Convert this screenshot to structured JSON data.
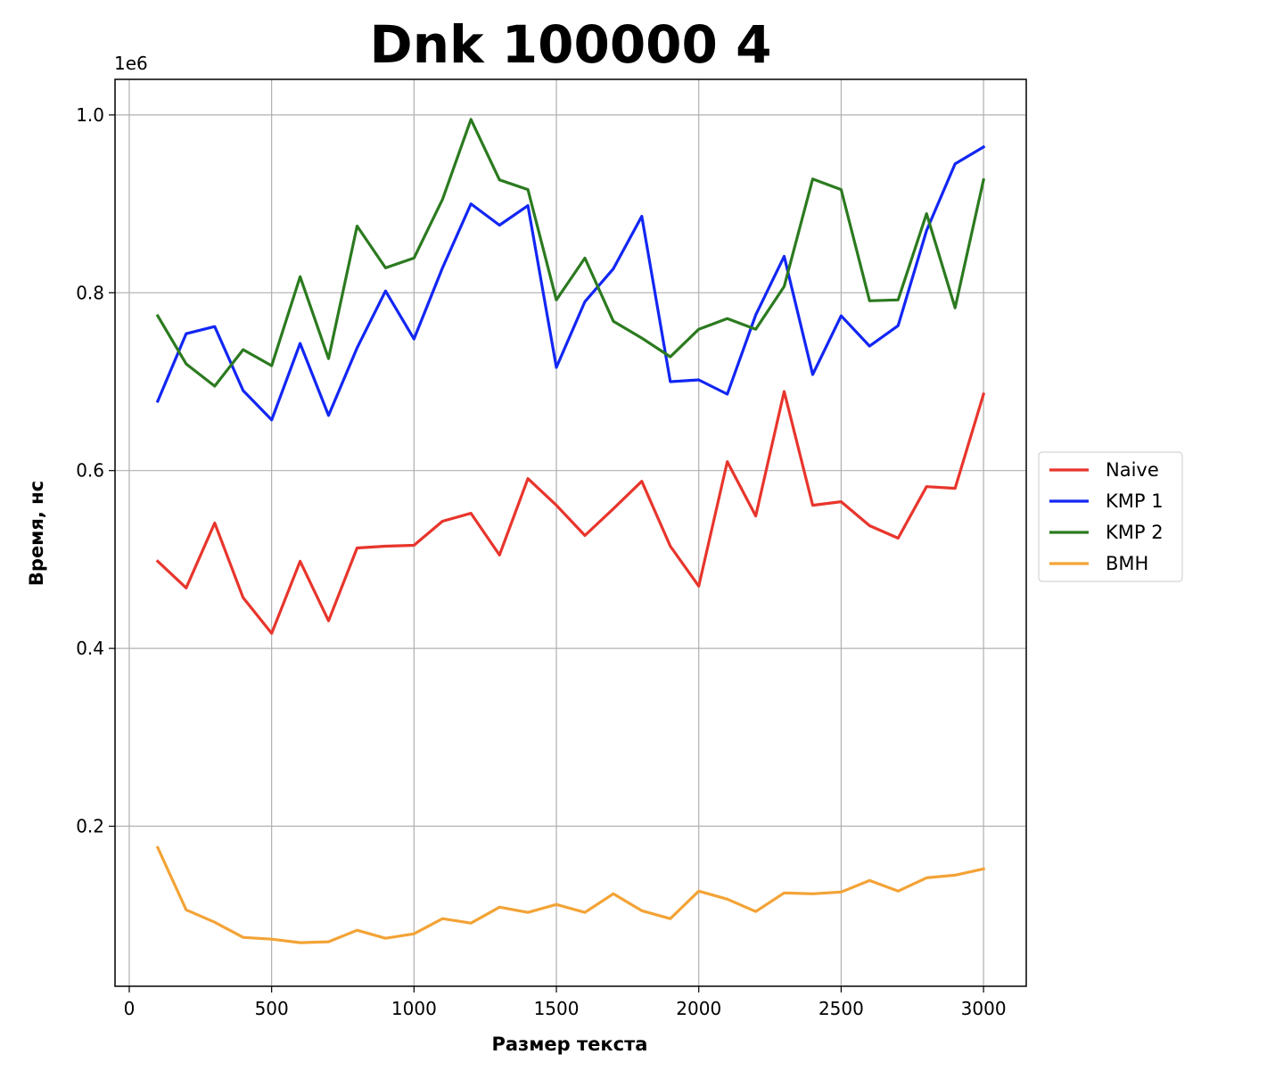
{
  "chart_data": {
    "type": "line",
    "title": "Dnk 100000 4",
    "xlabel": "Размер текста",
    "ylabel": "Время, нс",
    "y_offset_label": "1e6",
    "xlim": [
      -50,
      3150
    ],
    "ylim": [
      0.02,
      1.04
    ],
    "y_scale_factor": 1000000,
    "grid": true,
    "legend_position": "center-right-outside",
    "x_ticks": [
      0,
      500,
      1000,
      1500,
      2000,
      2500,
      3000
    ],
    "x_tick_labels": [
      "0",
      "500",
      "1000",
      "1500",
      "2000",
      "2500",
      "3000"
    ],
    "y_ticks": [
      0.2,
      0.4,
      0.6,
      0.8,
      1.0
    ],
    "y_tick_labels": [
      "0.2",
      "0.4",
      "0.6",
      "0.8",
      "1.0"
    ],
    "x": [
      100,
      200,
      300,
      400,
      500,
      600,
      700,
      800,
      900,
      1000,
      1100,
      1200,
      1300,
      1400,
      1500,
      1600,
      1700,
      1800,
      1900,
      2000,
      2100,
      2200,
      2300,
      2400,
      2500,
      2600,
      2700,
      2800,
      2900,
      3000
    ],
    "series": [
      {
        "name": "Naive",
        "color": "#e8352c",
        "values": [
          0.498,
          0.468,
          0.541,
          0.457,
          0.417,
          0.498,
          0.431,
          0.513,
          0.515,
          0.516,
          0.543,
          0.552,
          0.505,
          0.591,
          0.561,
          0.527,
          0.557,
          0.588,
          0.515,
          0.47,
          0.61,
          0.549,
          0.689,
          0.561,
          0.565,
          0.538,
          0.524,
          0.582,
          0.58,
          0.686
        ]
      },
      {
        "name": "KMP 1",
        "color": "#1226f4",
        "values": [
          0.678,
          0.754,
          0.762,
          0.69,
          0.657,
          0.743,
          0.662,
          0.738,
          0.802,
          0.748,
          0.828,
          0.9,
          0.876,
          0.898,
          0.716,
          0.79,
          0.827,
          0.886,
          0.7,
          0.702,
          0.686,
          0.775,
          0.841,
          0.708,
          0.774,
          0.74,
          0.763,
          0.87,
          0.945,
          0.964
        ]
      },
      {
        "name": "KMP 2",
        "color": "#2b7a1f",
        "values": [
          0.774,
          0.72,
          0.695,
          0.736,
          0.718,
          0.818,
          0.726,
          0.875,
          0.828,
          0.839,
          0.905,
          0.995,
          0.927,
          0.916,
          0.792,
          0.839,
          0.768,
          0.749,
          0.728,
          0.759,
          0.771,
          0.759,
          0.807,
          0.928,
          0.916,
          0.791,
          0.792,
          0.889,
          0.783,
          0.927
        ]
      },
      {
        "name": "BMH",
        "color": "#f3a336",
        "values": [
          0.176,
          0.106,
          0.092,
          0.075,
          0.073,
          0.069,
          0.07,
          0.083,
          0.074,
          0.079,
          0.096,
          0.091,
          0.109,
          0.103,
          0.112,
          0.103,
          0.124,
          0.105,
          0.096,
          0.127,
          0.118,
          0.104,
          0.125,
          0.124,
          0.126,
          0.139,
          0.127,
          0.142,
          0.145,
          0.152
        ]
      }
    ]
  }
}
